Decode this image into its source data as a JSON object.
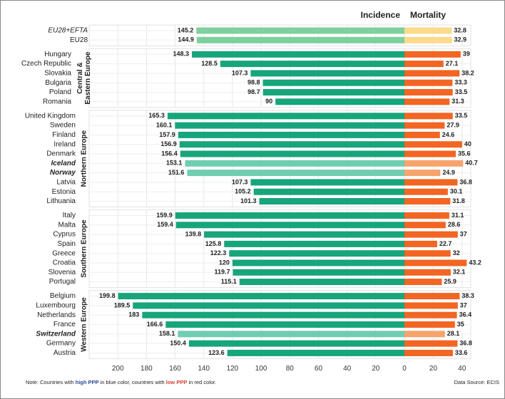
{
  "chart_data": {
    "type": "butterfly",
    "series": [
      {
        "name": "Incidence",
        "palette": {
          "base": "#17a57b",
          "light": "#6fcdb0",
          "pale": "#7fcf9f"
        },
        "xlim": [
          220,
          0
        ],
        "xticks": [
          200,
          180,
          160,
          140,
          120,
          100,
          80,
          60,
          40,
          20,
          0
        ]
      },
      {
        "name": "Mortality",
        "palette": {
          "base": "#f26522",
          "light": "#f7a36c",
          "pale": "#fdd98a"
        },
        "xlim": [
          0,
          46
        ],
        "xticks": [
          20,
          40
        ]
      }
    ],
    "grid": true,
    "groups": [
      {
        "categories": [
          "EU28+EFTA",
          "EU28"
        ],
        "label_colors": [
          "#333333",
          "#333333"
        ],
        "label_styles": [
          "italic",
          "normal"
        ],
        "shades": [
          "pale",
          "pale"
        ],
        "incidence": [
          145.2,
          144.9
        ],
        "mortality": [
          32.8,
          32.9
        ]
      },
      {
        "name": [
          "Central &",
          "Eastern Europe"
        ],
        "categories": [
          "Hungary",
          "Czech Republic",
          "Slovakia",
          "Bulgaria",
          "Poland",
          "Romania"
        ],
        "label_colors": [
          "#e03c31",
          "#e03c31",
          "#e03c31",
          "#e03c31",
          "#e03c31",
          "#e03c31"
        ],
        "label_styles": [
          "normal",
          "normal",
          "normal",
          "normal",
          "normal",
          "normal"
        ],
        "shades": [
          "base",
          "base",
          "base",
          "base",
          "base",
          "base"
        ],
        "incidence": [
          148.3,
          128.5,
          107.3,
          98.8,
          98.7,
          90
        ],
        "mortality": [
          39,
          27.1,
          38.2,
          33.3,
          33.5,
          31.3
        ]
      },
      {
        "name": [
          "Northern Europe"
        ],
        "categories": [
          "United Kingdom",
          "Sweden",
          "Finland",
          "Ireland",
          "Denmark",
          "Iceland",
          "Norway",
          "Latvia",
          "Estonia",
          "Lithuania"
        ],
        "label_colors": [
          "#2b4a9c",
          "#2b4a9c",
          "#2b4a9c",
          "#2b4a9c",
          "#2b4a9c",
          "#2b4a9c",
          "#2b4a9c",
          "#e03c31",
          "#e03c31",
          "#e03c31"
        ],
        "label_styles": [
          "normal",
          "normal",
          "normal",
          "normal",
          "normal",
          "bold-italic",
          "bold-italic",
          "normal",
          "normal",
          "normal"
        ],
        "shades": [
          "base",
          "base",
          "base",
          "base",
          "base",
          "light",
          "light",
          "base",
          "base",
          "base"
        ],
        "incidence": [
          165.3,
          160.1,
          157.9,
          156.9,
          156.4,
          153.1,
          151.6,
          107.3,
          105.2,
          101.3
        ],
        "mortality": [
          33.5,
          27.9,
          24.6,
          40,
          35.6,
          40.7,
          24.9,
          36.8,
          30.1,
          31.8
        ]
      },
      {
        "name": [
          "Southern Europe"
        ],
        "categories": [
          "Italy",
          "Malta",
          "Cyprus",
          "Spain",
          "Greece",
          "Croatia",
          "Slovenia",
          "Portugal"
        ],
        "label_colors": [
          "#2b4a9c",
          "#2b4a9c",
          "#e03c31",
          "#e03c31",
          "#e03c31",
          "#e03c31",
          "#e03c31",
          "#e03c31"
        ],
        "label_styles": [
          "normal",
          "normal",
          "normal",
          "normal",
          "normal",
          "normal",
          "normal",
          "normal"
        ],
        "shades": [
          "base",
          "base",
          "base",
          "base",
          "base",
          "base",
          "base",
          "base"
        ],
        "incidence": [
          159.9,
          159.4,
          139.8,
          125.8,
          122.3,
          120,
          119.7,
          115.1
        ],
        "mortality": [
          31.1,
          28.6,
          37,
          22.7,
          32,
          43.2,
          32.1,
          25.9
        ]
      },
      {
        "name": [
          "Western Europe"
        ],
        "categories": [
          "Belgium",
          "Luxembourg",
          "Netherlands",
          "France",
          "Switzerland",
          "Germany",
          "Austria"
        ],
        "label_colors": [
          "#2b4a9c",
          "#2b4a9c",
          "#2b4a9c",
          "#2b4a9c",
          "#2b4a9c",
          "#2b4a9c",
          "#2b4a9c"
        ],
        "label_styles": [
          "normal",
          "normal",
          "normal",
          "normal",
          "bold-italic",
          "normal",
          "normal"
        ],
        "shades": [
          "base",
          "base",
          "base",
          "base",
          "light",
          "base",
          "base"
        ],
        "incidence": [
          199.8,
          189.5,
          183,
          166.6,
          158.1,
          150.4,
          123.6
        ],
        "mortality": [
          38.3,
          37,
          36.4,
          35,
          28.1,
          36.8,
          33.6
        ]
      }
    ]
  },
  "note": {
    "parts": [
      "Note: Countries with ",
      "high PPP",
      " in blue color, countries with ",
      "low PPP",
      " in red color."
    ]
  },
  "source": "Data Source: ECIS"
}
